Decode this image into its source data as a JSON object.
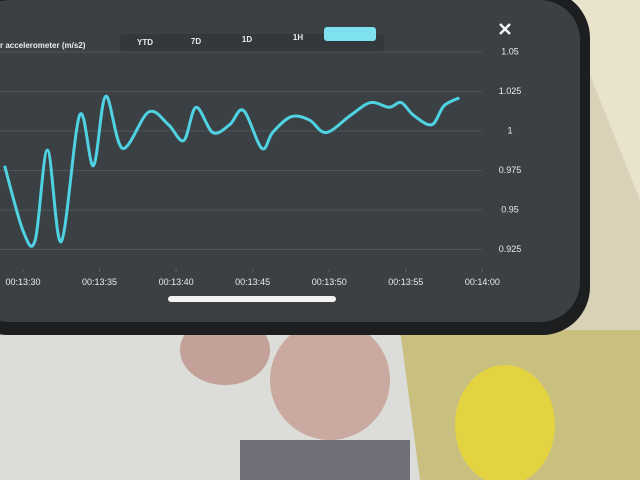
{
  "range_buttons": [
    "YTD",
    "7D",
    "1D",
    "1H"
  ],
  "chart_data": {
    "type": "line",
    "title": "r accelerometer (m/s2)",
    "x": [
      808.8,
      810.0,
      810.8,
      811.6,
      812.5,
      813.7,
      814.6,
      815.4,
      816.5,
      818.2,
      819.5,
      820.5,
      821.3,
      822.4,
      823.5,
      824.4,
      825.6,
      826.3,
      827.5,
      828.7,
      829.8,
      831.4,
      832.7,
      833.9,
      834.7,
      835.5,
      836.7,
      837.5,
      838.5
    ],
    "series": [
      {
        "color": "#4fd3e3",
        "values": [
          0.978,
          0.937,
          0.931,
          0.988,
          0.93,
          1.01,
          0.978,
          1.022,
          0.989,
          1.012,
          1.004,
          0.994,
          1.015,
          0.999,
          1.004,
          1.013,
          0.989,
          0.999,
          1.009,
          1.007,
          0.999,
          1.01,
          1.018,
          1.015,
          1.018,
          1.01,
          1.004,
          1.016,
          1.021
        ]
      }
    ],
    "xlim": [
      808.5,
      840.5
    ],
    "xticks": [
      {
        "value": 810,
        "label": "00:13:30"
      },
      {
        "value": 815,
        "label": "00:13:35"
      },
      {
        "value": 820,
        "label": "00:13:40"
      },
      {
        "value": 825,
        "label": "00:13:45"
      },
      {
        "value": 830,
        "label": "00:13:50"
      },
      {
        "value": 835,
        "label": "00:13:55"
      },
      {
        "value": 840,
        "label": "00:14:00"
      }
    ],
    "ylim": [
      0.925,
      1.05
    ],
    "yticks": [
      1.05,
      1.025,
      1,
      0.975,
      0.95,
      0.925
    ],
    "grid": true
  }
}
